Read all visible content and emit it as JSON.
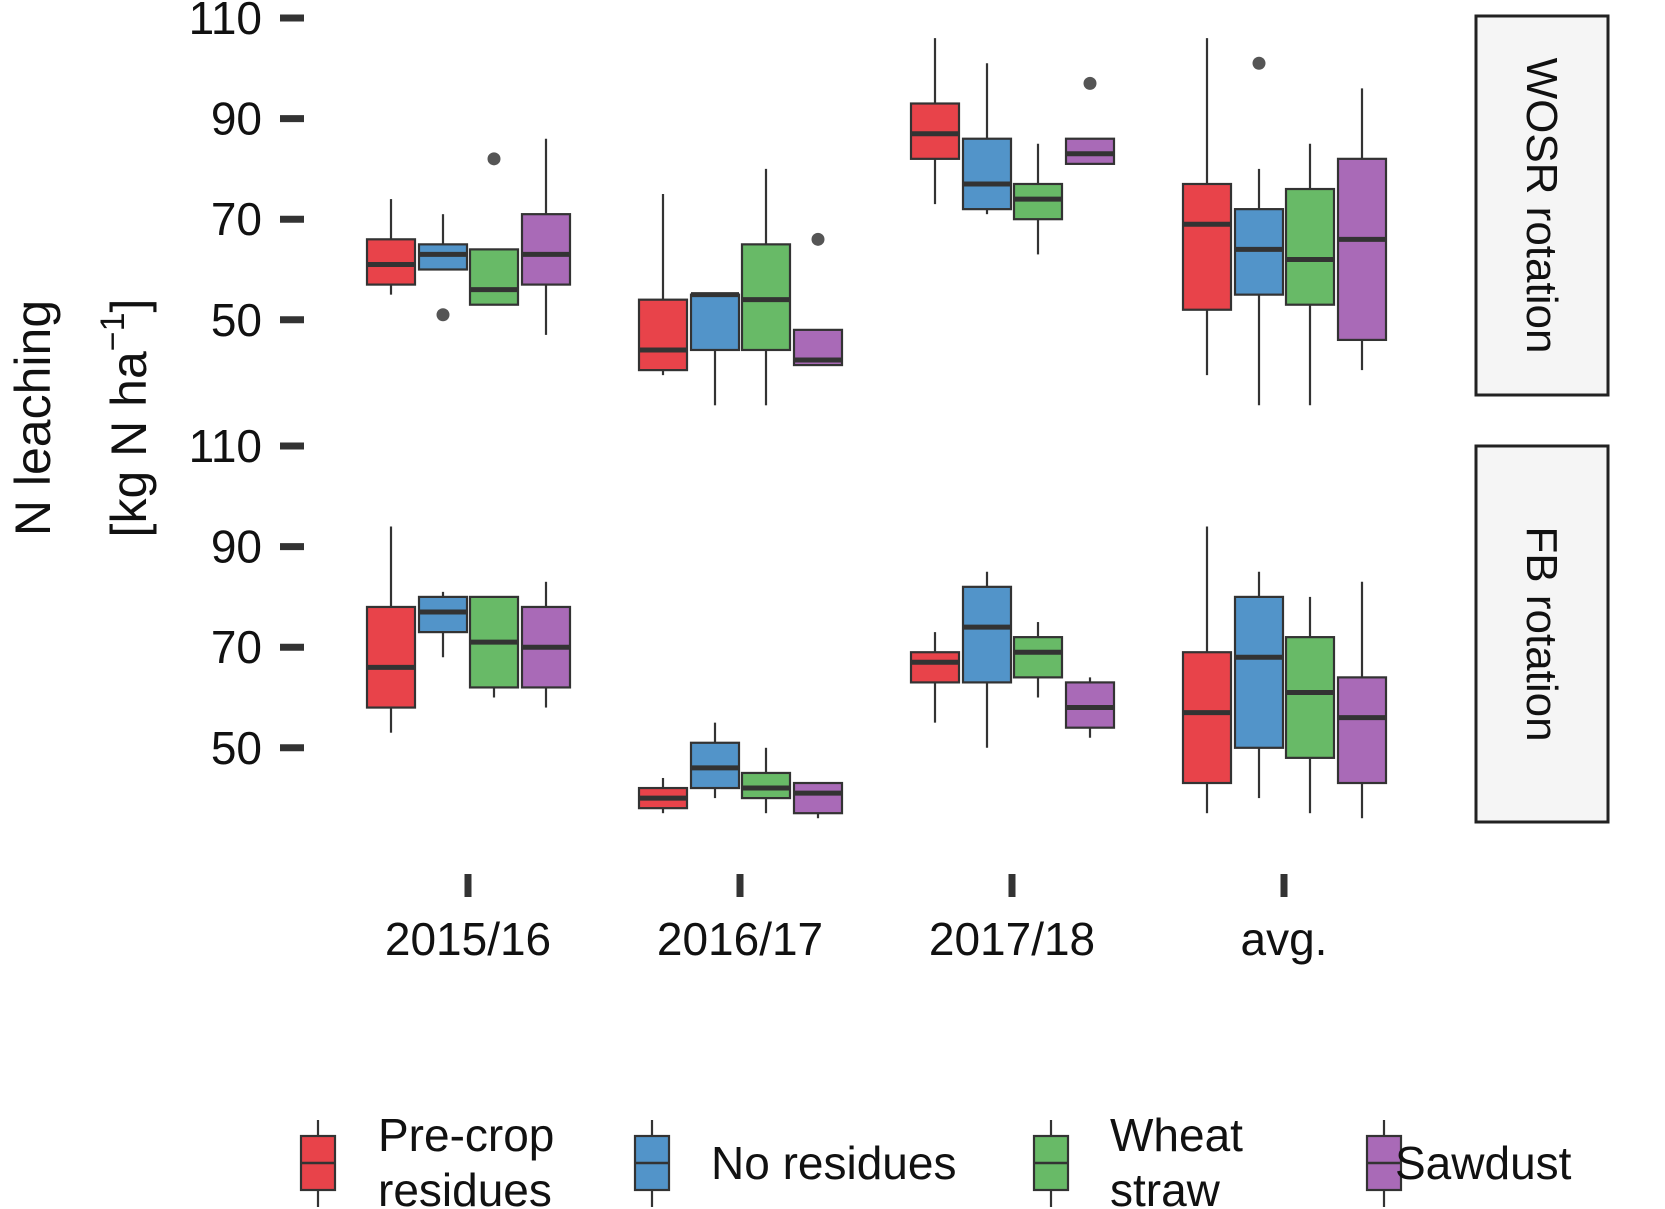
{
  "chart_data": {
    "type": "boxplot",
    "ylabel_line1": "N leaching",
    "ylabel_line2_prefix": "[kg N ha",
    "ylabel_exponent": "−1",
    "ylabel_line2_suffix": "]",
    "ylim": [
      33,
      112
    ],
    "yticks": [
      50,
      70,
      90,
      110
    ],
    "categories": [
      "2015/16",
      "2016/17",
      "2017/18",
      "avg."
    ],
    "colors": {
      "Pre-crop residues": "#E8434A",
      "No residues": "#5294C9",
      "Wheat straw": "#68BA67",
      "Sawdust": "#A96AB7"
    },
    "legend": {
      "position": "bottom",
      "entries": [
        {
          "lines": [
            "Pre-crop",
            "residues"
          ],
          "color": "#E8434A"
        },
        {
          "lines": [
            "No residues"
          ],
          "color": "#5294C9"
        },
        {
          "lines": [
            "Wheat",
            "straw"
          ],
          "color": "#68BA67"
        },
        {
          "lines": [
            "Sawdust"
          ],
          "color": "#A96AB7"
        }
      ]
    },
    "panels": [
      {
        "strip": "WOSR rotation",
        "groups": [
          {
            "category": "2015/16",
            "boxes": [
              {
                "series": "Pre-crop residues",
                "min": 55,
                "q1": 57,
                "median": 61,
                "q3": 66,
                "max": 74,
                "outliers": []
              },
              {
                "series": "No residues",
                "min": 60,
                "q1": 60,
                "median": 63,
                "q3": 65,
                "max": 71,
                "outliers": [
                  51
                ]
              },
              {
                "series": "Wheat straw",
                "min": 53,
                "q1": 53,
                "median": 56,
                "q3": 64,
                "max": 64,
                "outliers": [
                  82
                ]
              },
              {
                "series": "Sawdust",
                "min": 47,
                "q1": 57,
                "median": 63,
                "q3": 71,
                "max": 86,
                "outliers": []
              }
            ]
          },
          {
            "category": "2016/17",
            "boxes": [
              {
                "series": "Pre-crop residues",
                "min": 39,
                "q1": 40,
                "median": 44,
                "q3": 54,
                "max": 75,
                "outliers": []
              },
              {
                "series": "No residues",
                "min": 33,
                "q1": 44,
                "median": 55,
                "q3": 55,
                "max": 55,
                "outliers": []
              },
              {
                "series": "Wheat straw",
                "min": 33,
                "q1": 44,
                "median": 54,
                "q3": 65,
                "max": 80,
                "outliers": []
              },
              {
                "series": "Sawdust",
                "min": 41,
                "q1": 41,
                "median": 42,
                "q3": 48,
                "max": 48,
                "outliers": [
                  66
                ]
              }
            ]
          },
          {
            "category": "2017/18",
            "boxes": [
              {
                "series": "Pre-crop residues",
                "min": 73,
                "q1": 82,
                "median": 87,
                "q3": 93,
                "max": 106,
                "outliers": []
              },
              {
                "series": "No residues",
                "min": 71,
                "q1": 72,
                "median": 77,
                "q3": 86,
                "max": 101,
                "outliers": []
              },
              {
                "series": "Wheat straw",
                "min": 63,
                "q1": 70,
                "median": 74,
                "q3": 77,
                "max": 85,
                "outliers": []
              },
              {
                "series": "Sawdust",
                "min": 81,
                "q1": 81,
                "median": 83,
                "q3": 86,
                "max": 86,
                "outliers": [
                  97
                ]
              }
            ]
          },
          {
            "category": "avg.",
            "boxes": [
              {
                "series": "Pre-crop residues",
                "min": 39,
                "q1": 52,
                "median": 69,
                "q3": 77,
                "max": 106,
                "outliers": []
              },
              {
                "series": "No residues",
                "min": 33,
                "q1": 55,
                "median": 64,
                "q3": 72,
                "max": 80,
                "outliers": [
                  101
                ]
              },
              {
                "series": "Wheat straw",
                "min": 33,
                "q1": 53,
                "median": 62,
                "q3": 76,
                "max": 85,
                "outliers": []
              },
              {
                "series": "Sawdust",
                "min": 40,
                "q1": 46,
                "median": 66,
                "q3": 82,
                "max": 96,
                "outliers": []
              }
            ]
          }
        ]
      },
      {
        "strip": "FB rotation",
        "groups": [
          {
            "category": "2015/16",
            "boxes": [
              {
                "series": "Pre-crop residues",
                "min": 53,
                "q1": 58,
                "median": 66,
                "q3": 78,
                "max": 94,
                "outliers": []
              },
              {
                "series": "No residues",
                "min": 68,
                "q1": 73,
                "median": 77,
                "q3": 80,
                "max": 81,
                "outliers": []
              },
              {
                "series": "Wheat straw",
                "min": 60,
                "q1": 62,
                "median": 71,
                "q3": 80,
                "max": 80,
                "outliers": []
              },
              {
                "series": "Sawdust",
                "min": 58,
                "q1": 62,
                "median": 70,
                "q3": 78,
                "max": 83,
                "outliers": []
              }
            ]
          },
          {
            "category": "2016/17",
            "boxes": [
              {
                "series": "Pre-crop residues",
                "min": 37,
                "q1": 38,
                "median": 40,
                "q3": 42,
                "max": 44,
                "outliers": []
              },
              {
                "series": "No residues",
                "min": 40,
                "q1": 42,
                "median": 46,
                "q3": 51,
                "max": 55,
                "outliers": []
              },
              {
                "series": "Wheat straw",
                "min": 37,
                "q1": 40,
                "median": 42,
                "q3": 45,
                "max": 50,
                "outliers": []
              },
              {
                "series": "Sawdust",
                "min": 36,
                "q1": 37,
                "median": 41,
                "q3": 43,
                "max": 43,
                "outliers": []
              }
            ]
          },
          {
            "category": "2017/18",
            "boxes": [
              {
                "series": "Pre-crop residues",
                "min": 55,
                "q1": 63,
                "median": 67,
                "q3": 69,
                "max": 73,
                "outliers": []
              },
              {
                "series": "No residues",
                "min": 50,
                "q1": 63,
                "median": 74,
                "q3": 82,
                "max": 85,
                "outliers": []
              },
              {
                "series": "Wheat straw",
                "min": 60,
                "q1": 64,
                "median": 69,
                "q3": 72,
                "max": 75,
                "outliers": []
              },
              {
                "series": "Sawdust",
                "min": 52,
                "q1": 54,
                "median": 58,
                "q3": 63,
                "max": 64,
                "outliers": []
              }
            ]
          },
          {
            "category": "avg.",
            "boxes": [
              {
                "series": "Pre-crop residues",
                "min": 37,
                "q1": 43,
                "median": 57,
                "q3": 69,
                "max": 94,
                "outliers": []
              },
              {
                "series": "No residues",
                "min": 40,
                "q1": 50,
                "median": 68,
                "q3": 80,
                "max": 85,
                "outliers": []
              },
              {
                "series": "Wheat straw",
                "min": 37,
                "q1": 48,
                "median": 61,
                "q3": 72,
                "max": 80,
                "outliers": []
              },
              {
                "series": "Sawdust",
                "min": 36,
                "q1": 43,
                "median": 56,
                "q3": 64,
                "max": 83,
                "outliers": []
              }
            ]
          }
        ]
      }
    ]
  }
}
